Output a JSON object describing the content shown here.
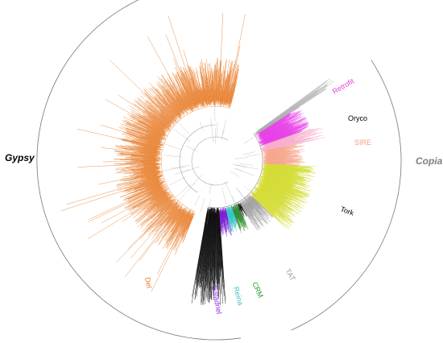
{
  "superfamilies": [
    {
      "key": "gypsy",
      "label": "Gypsy",
      "color": "#000000"
    },
    {
      "key": "copia",
      "label": "Copia",
      "color": "#808080"
    }
  ],
  "clades": [
    {
      "key": "retrofit",
      "label": "Retrofit",
      "color": "#e040e0"
    },
    {
      "key": "oryco",
      "label": "Oryco",
      "color": "#000000"
    },
    {
      "key": "sire",
      "label": "SIRE",
      "color": "#f5a07a"
    },
    {
      "key": "tork",
      "label": "Tork",
      "color": "#000000"
    },
    {
      "key": "tat",
      "label": "TAT",
      "color": "#9a9a9a"
    },
    {
      "key": "crm",
      "label": "CRM",
      "color": "#2a9a2a"
    },
    {
      "key": "reina",
      "label": "Reina",
      "color": "#3fc0c0"
    },
    {
      "key": "galadriel",
      "label": "Galadriel",
      "color": "#8a2be2"
    },
    {
      "key": "del",
      "label": "Del",
      "color": "#e8782a"
    }
  ],
  "branch_colors": {
    "del": "#e87f2e",
    "retrofit": "#e640e6",
    "oryco": "#f7a8c8",
    "sire": "#f6a38a",
    "tork": "#d4dc32",
    "tat": "#a0a0a0",
    "crm": "#2e8b2e",
    "reina": "#36c1c8",
    "galadriel": "#7a1fd0",
    "black": "#111111"
  }
}
